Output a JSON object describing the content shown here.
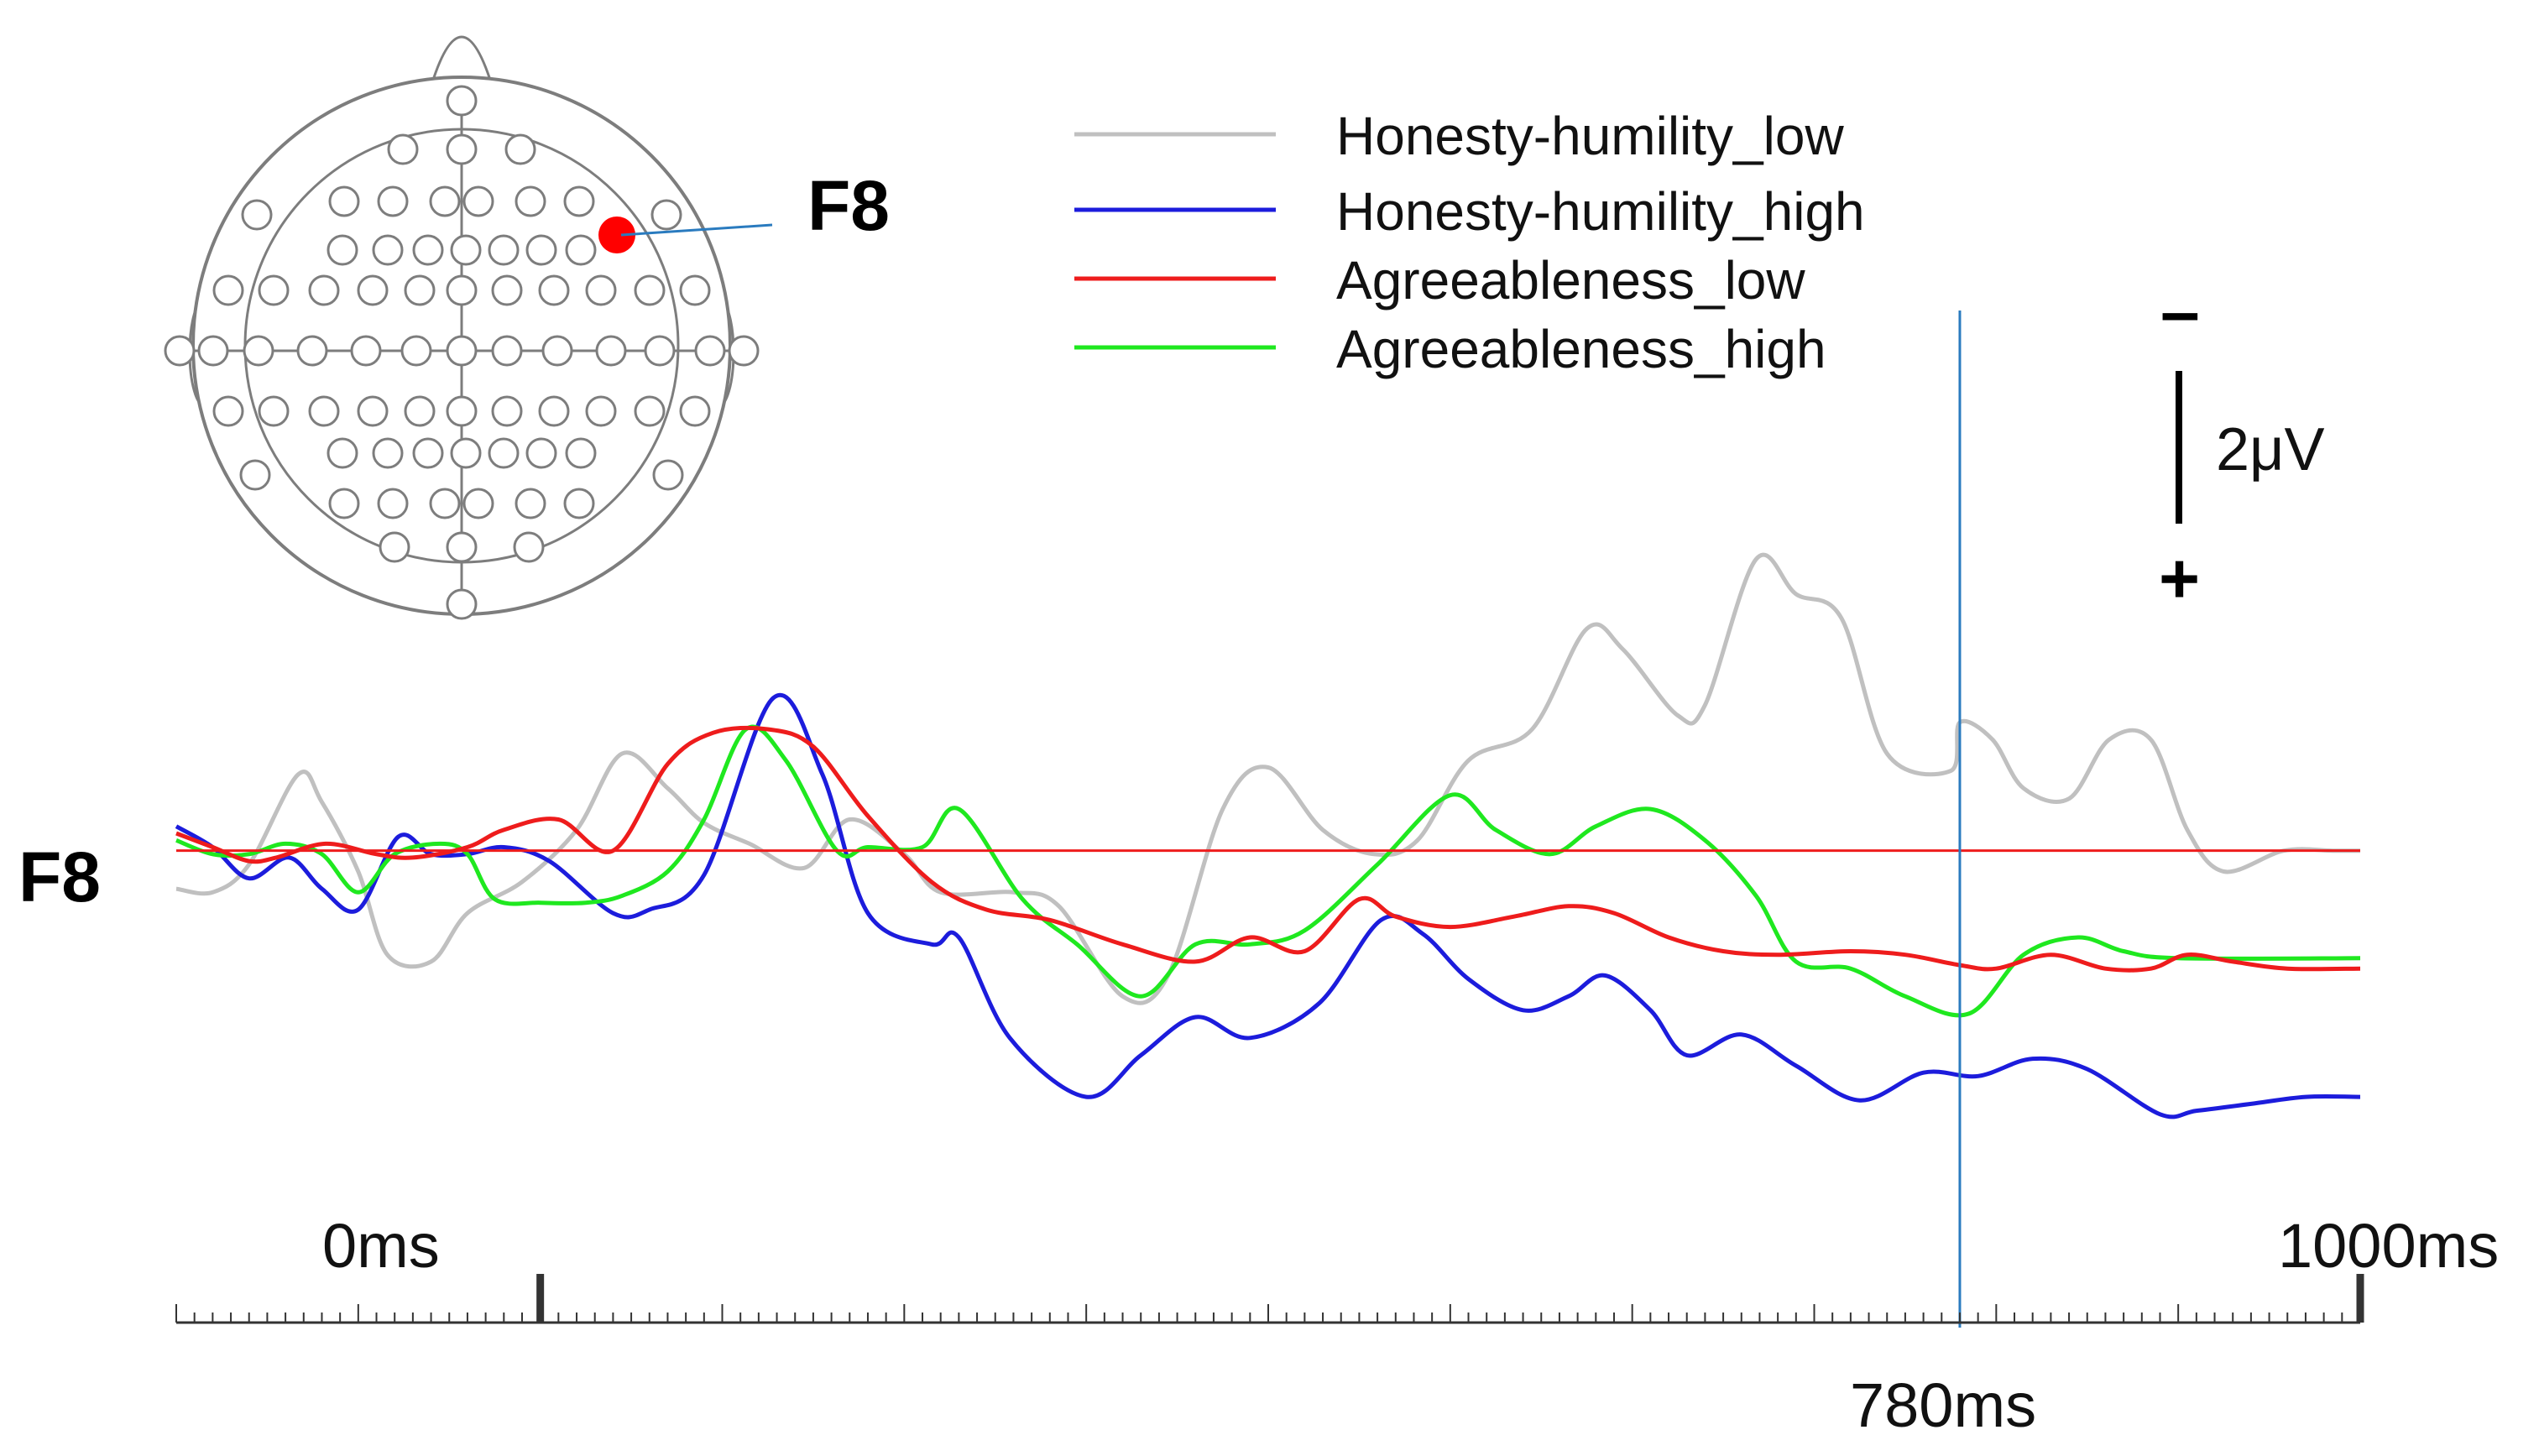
{
  "chart_data": {
    "type": "line",
    "channel_label": "F8",
    "montage": {
      "highlight_label": "F8",
      "highlight_color": "#ff0000"
    },
    "legend": [
      {
        "name": "Honesty-humility_low",
        "color": "#c0c0c0"
      },
      {
        "name": "Honesty-humility_high",
        "color": "#1c1cdc"
      },
      {
        "name": "Agreeableness_low",
        "color": "#ee1c1c"
      },
      {
        "name": "Agreeableness_high",
        "color": "#1fe81f"
      }
    ],
    "x_unit": "ms",
    "xlim": [
      -200,
      1000
    ],
    "ylim_uV": [
      -5.4,
      4.4
    ],
    "y_inverted": true,
    "tick_labels": [
      "0ms",
      "1000ms",
      "780ms"
    ],
    "marker_ms": 780,
    "marker_color": "#2a7bbf",
    "baseline_color": "#ee1c1c",
    "scale_bar": {
      "label": "2μV",
      "minus_label": "–",
      "plus_label": "+",
      "value_uV": 2
    },
    "series": [
      {
        "name": "Honesty-humility_low",
        "color": "#c0c0c0",
        "points": [
          [
            -200,
            -0.55
          ],
          [
            -180,
            -0.6
          ],
          [
            -160,
            -0.2
          ],
          [
            -133,
            1.1
          ],
          [
            -120,
            0.7
          ],
          [
            -100,
            -0.3
          ],
          [
            -84,
            -1.5
          ],
          [
            -60,
            -1.6
          ],
          [
            -40,
            -0.9
          ],
          [
            -10,
            -0.45
          ],
          [
            20,
            0.3
          ],
          [
            45,
            1.4
          ],
          [
            70,
            0.9
          ],
          [
            90,
            0.4
          ],
          [
            115,
            0.1
          ],
          [
            145,
            -0.25
          ],
          [
            170,
            0.45
          ],
          [
            200,
            -0.05
          ],
          [
            220,
            -0.6
          ],
          [
            260,
            -0.6
          ],
          [
            285,
            -0.8
          ],
          [
            320,
            -2.1
          ],
          [
            345,
            -1.8
          ],
          [
            375,
            0.6
          ],
          [
            400,
            1.2
          ],
          [
            430,
            0.3
          ],
          [
            458,
            -0.05
          ],
          [
            482,
            0.15
          ],
          [
            510,
            1.3
          ],
          [
            545,
            1.75
          ],
          [
            575,
            3.2
          ],
          [
            595,
            2.9
          ],
          [
            625,
            1.95
          ],
          [
            640,
            2.1
          ],
          [
            668,
            4.2
          ],
          [
            690,
            3.7
          ],
          [
            715,
            3.35
          ],
          [
            740,
            1.4
          ],
          [
            775,
            1.15
          ],
          [
            780,
            1.85
          ],
          [
            798,
            1.6
          ],
          [
            815,
            0.9
          ],
          [
            840,
            0.75
          ],
          [
            862,
            1.6
          ],
          [
            885,
            1.6
          ],
          [
            905,
            0.3
          ],
          [
            925,
            -0.3
          ],
          [
            958,
            0.0
          ],
          [
            985,
            0.0
          ],
          [
            1000,
            0.0
          ]
        ]
      },
      {
        "name": "Honesty-humility_high",
        "color": "#1c1cdc",
        "points": [
          [
            -200,
            0.35
          ],
          [
            -180,
            0.05
          ],
          [
            -160,
            -0.4
          ],
          [
            -138,
            -0.1
          ],
          [
            -120,
            -0.55
          ],
          [
            -100,
            -0.85
          ],
          [
            -78,
            0.2
          ],
          [
            -60,
            -0.05
          ],
          [
            -40,
            -0.05
          ],
          [
            -20,
            0.05
          ],
          [
            5,
            -0.15
          ],
          [
            40,
            -0.9
          ],
          [
            60,
            -0.85
          ],
          [
            90,
            -0.35
          ],
          [
            128,
            2.2
          ],
          [
            155,
            1.1
          ],
          [
            180,
            -0.9
          ],
          [
            215,
            -1.35
          ],
          [
            230,
            -1.25
          ],
          [
            258,
            -2.7
          ],
          [
            300,
            -3.55
          ],
          [
            330,
            -2.95
          ],
          [
            360,
            -2.4
          ],
          [
            390,
            -2.7
          ],
          [
            428,
            -2.2
          ],
          [
            462,
            -1.0
          ],
          [
            485,
            -1.2
          ],
          [
            510,
            -1.85
          ],
          [
            540,
            -2.3
          ],
          [
            565,
            -2.1
          ],
          [
            585,
            -1.8
          ],
          [
            610,
            -2.3
          ],
          [
            630,
            -2.95
          ],
          [
            660,
            -2.65
          ],
          [
            690,
            -3.1
          ],
          [
            725,
            -3.6
          ],
          [
            760,
            -3.2
          ],
          [
            790,
            -3.25
          ],
          [
            820,
            -3.0
          ],
          [
            850,
            -3.15
          ],
          [
            890,
            -3.8
          ],
          [
            910,
            -3.75
          ],
          [
            940,
            -3.65
          ],
          [
            970,
            -3.55
          ],
          [
            1000,
            -3.55
          ]
        ]
      },
      {
        "name": "Agreeableness_low",
        "color": "#ee1c1c",
        "points": [
          [
            -200,
            0.25
          ],
          [
            -180,
            0.05
          ],
          [
            -160,
            -0.15
          ],
          [
            -145,
            -0.1
          ],
          [
            -118,
            0.1
          ],
          [
            -90,
            -0.05
          ],
          [
            -70,
            -0.1
          ],
          [
            -40,
            0.05
          ],
          [
            -20,
            0.3
          ],
          [
            10,
            0.45
          ],
          [
            40,
            0.0
          ],
          [
            70,
            1.25
          ],
          [
            95,
            1.7
          ],
          [
            125,
            1.75
          ],
          [
            150,
            1.5
          ],
          [
            180,
            0.5
          ],
          [
            215,
            -0.45
          ],
          [
            245,
            -0.85
          ],
          [
            280,
            -1.0
          ],
          [
            320,
            -1.35
          ],
          [
            360,
            -1.6
          ],
          [
            390,
            -1.25
          ],
          [
            420,
            -1.45
          ],
          [
            450,
            -0.7
          ],
          [
            470,
            -0.95
          ],
          [
            500,
            -1.1
          ],
          [
            535,
            -0.95
          ],
          [
            565,
            -0.8
          ],
          [
            590,
            -0.9
          ],
          [
            620,
            -1.25
          ],
          [
            650,
            -1.45
          ],
          [
            680,
            -1.5
          ],
          [
            720,
            -1.45
          ],
          [
            750,
            -1.5
          ],
          [
            780,
            -1.65
          ],
          [
            800,
            -1.7
          ],
          [
            830,
            -1.5
          ],
          [
            860,
            -1.7
          ],
          [
            885,
            -1.7
          ],
          [
            905,
            -1.5
          ],
          [
            930,
            -1.6
          ],
          [
            960,
            -1.7
          ],
          [
            1000,
            -1.7
          ]
        ]
      },
      {
        "name": "Agreeableness_high",
        "color": "#1fe81f",
        "points": [
          [
            -200,
            0.15
          ],
          [
            -180,
            -0.05
          ],
          [
            -160,
            -0.05
          ],
          [
            -140,
            0.1
          ],
          [
            -120,
            -0.05
          ],
          [
            -100,
            -0.6
          ],
          [
            -80,
            -0.05
          ],
          [
            -55,
            0.1
          ],
          [
            -40,
            -0.05
          ],
          [
            -25,
            -0.7
          ],
          [
            0,
            -0.75
          ],
          [
            25,
            -0.75
          ],
          [
            45,
            -0.65
          ],
          [
            70,
            -0.3
          ],
          [
            90,
            0.45
          ],
          [
            113,
            1.75
          ],
          [
            135,
            1.3
          ],
          [
            163,
            0.0
          ],
          [
            180,
            0.05
          ],
          [
            210,
            0.05
          ],
          [
            230,
            0.6
          ],
          [
            265,
            -0.7
          ],
          [
            295,
            -1.35
          ],
          [
            330,
            -2.1
          ],
          [
            360,
            -1.35
          ],
          [
            390,
            -1.35
          ],
          [
            420,
            -1.15
          ],
          [
            460,
            -0.2
          ],
          [
            500,
            0.8
          ],
          [
            525,
            0.3
          ],
          [
            555,
            -0.05
          ],
          [
            580,
            0.35
          ],
          [
            610,
            0.6
          ],
          [
            640,
            0.15
          ],
          [
            668,
            -0.65
          ],
          [
            690,
            -1.6
          ],
          [
            720,
            -1.7
          ],
          [
            750,
            -2.1
          ],
          [
            785,
            -2.35
          ],
          [
            815,
            -1.5
          ],
          [
            845,
            -1.25
          ],
          [
            870,
            -1.45
          ],
          [
            900,
            -1.55
          ],
          [
            1000,
            -1.55
          ]
        ]
      }
    ]
  }
}
